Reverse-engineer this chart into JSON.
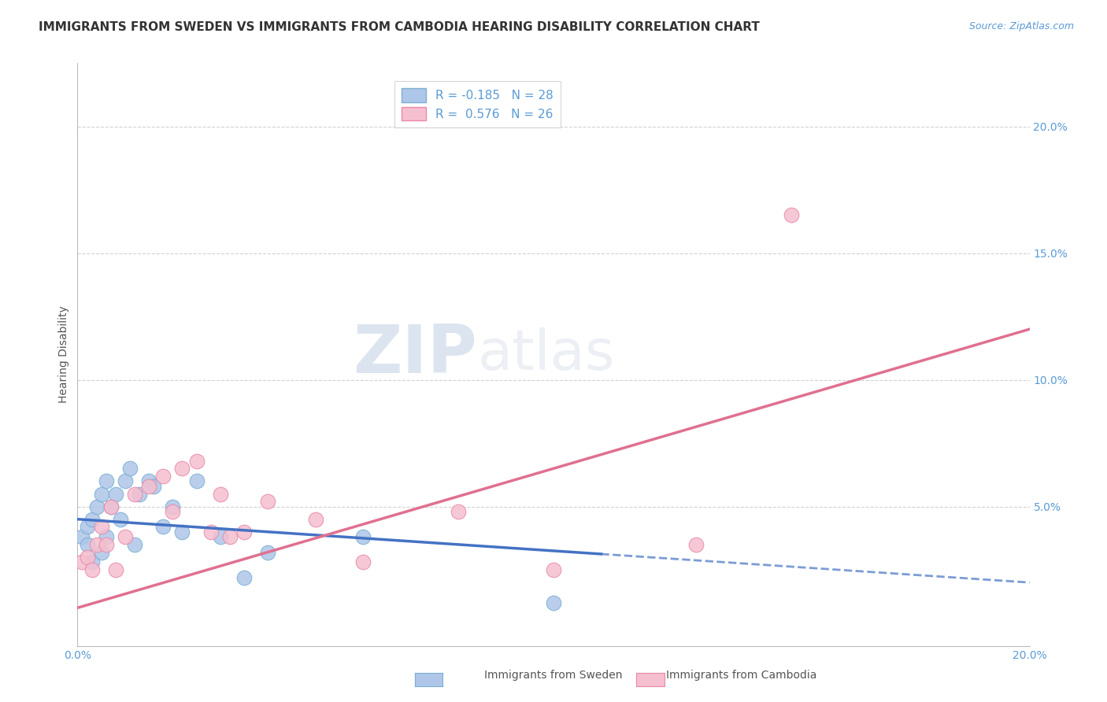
{
  "title": "IMMIGRANTS FROM SWEDEN VS IMMIGRANTS FROM CAMBODIA HEARING DISABILITY CORRELATION CHART",
  "source_text": "Source: ZipAtlas.com",
  "ylabel": "Hearing Disability",
  "x_min": 0.0,
  "x_max": 0.2,
  "y_min": -0.005,
  "y_max": 0.225,
  "sweden_color": "#aec6e8",
  "sweden_edge_color": "#7aafd4",
  "cambodia_color": "#f5bfcf",
  "cambodia_edge_color": "#e88aa8",
  "sweden_line_color": "#4472c4",
  "cambodia_line_color": "#e07090",
  "sweden_R": -0.185,
  "sweden_N": 28,
  "cambodia_R": 0.576,
  "cambodia_N": 26,
  "legend_label_sweden": "Immigrants from Sweden",
  "legend_label_cambodia": "Immigrants from Cambodia",
  "sweden_x": [
    0.001,
    0.002,
    0.002,
    0.003,
    0.003,
    0.004,
    0.005,
    0.005,
    0.006,
    0.006,
    0.007,
    0.008,
    0.009,
    0.01,
    0.011,
    0.012,
    0.013,
    0.015,
    0.016,
    0.018,
    0.02,
    0.022,
    0.025,
    0.03,
    0.035,
    0.04,
    0.06,
    0.1
  ],
  "sweden_y": [
    0.038,
    0.035,
    0.042,
    0.028,
    0.045,
    0.05,
    0.055,
    0.032,
    0.06,
    0.038,
    0.05,
    0.055,
    0.045,
    0.06,
    0.065,
    0.035,
    0.055,
    0.06,
    0.058,
    0.042,
    0.05,
    0.04,
    0.06,
    0.038,
    0.022,
    0.032,
    0.038,
    0.012
  ],
  "cambodia_x": [
    0.001,
    0.002,
    0.003,
    0.004,
    0.005,
    0.006,
    0.007,
    0.008,
    0.01,
    0.012,
    0.015,
    0.018,
    0.02,
    0.022,
    0.025,
    0.028,
    0.03,
    0.032,
    0.035,
    0.04,
    0.05,
    0.06,
    0.08,
    0.1,
    0.13,
    0.15
  ],
  "cambodia_y": [
    0.028,
    0.03,
    0.025,
    0.035,
    0.042,
    0.035,
    0.05,
    0.025,
    0.038,
    0.055,
    0.058,
    0.062,
    0.048,
    0.065,
    0.068,
    0.04,
    0.055,
    0.038,
    0.04,
    0.052,
    0.045,
    0.028,
    0.048,
    0.025,
    0.035,
    0.165
  ],
  "watermark_zip": "ZIP",
  "watermark_atlas": "atlas",
  "title_fontsize": 11,
  "axis_label_fontsize": 10,
  "tick_fontsize": 10,
  "legend_fontsize": 11
}
